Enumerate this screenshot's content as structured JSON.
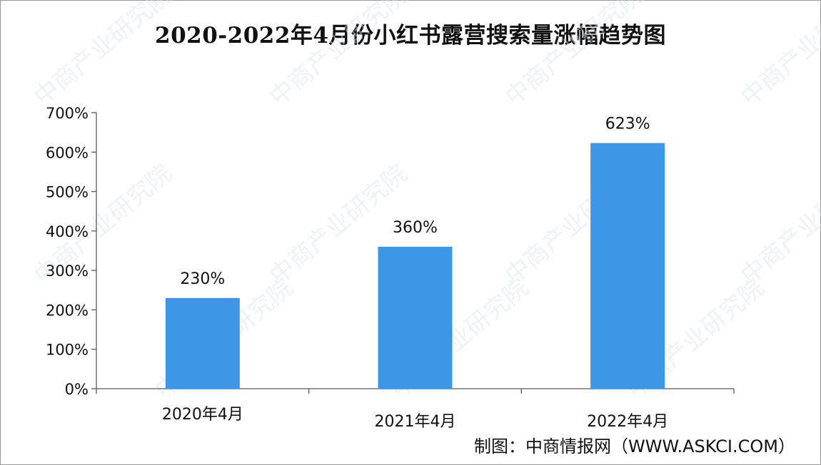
{
  "title": "2020-2022年4月份小红书露营搜索量涨幅趋势图",
  "source": "制图：中商情报网（WWW.ASKCI.COM）",
  "watermark": "中商产业研究院",
  "colors": {
    "bar": "#3d96e6",
    "axis": "#595959",
    "text": "#111111"
  },
  "chart_data": {
    "type": "bar",
    "title": "2020-2022年4月份小红书露营搜索量涨幅趋势图",
    "categories": [
      "2020年4月",
      "2021年4月",
      "2022年4月"
    ],
    "values": [
      230,
      360,
      623
    ],
    "data_labels": [
      "230%",
      "360%",
      "623%"
    ],
    "y_ticks": [
      "0%",
      "100%",
      "200%",
      "300%",
      "400%",
      "500%",
      "600%",
      "700%"
    ],
    "ylim": [
      0,
      700
    ],
    "xlabel": "",
    "ylabel": "",
    "grid": false,
    "legend": "none"
  }
}
